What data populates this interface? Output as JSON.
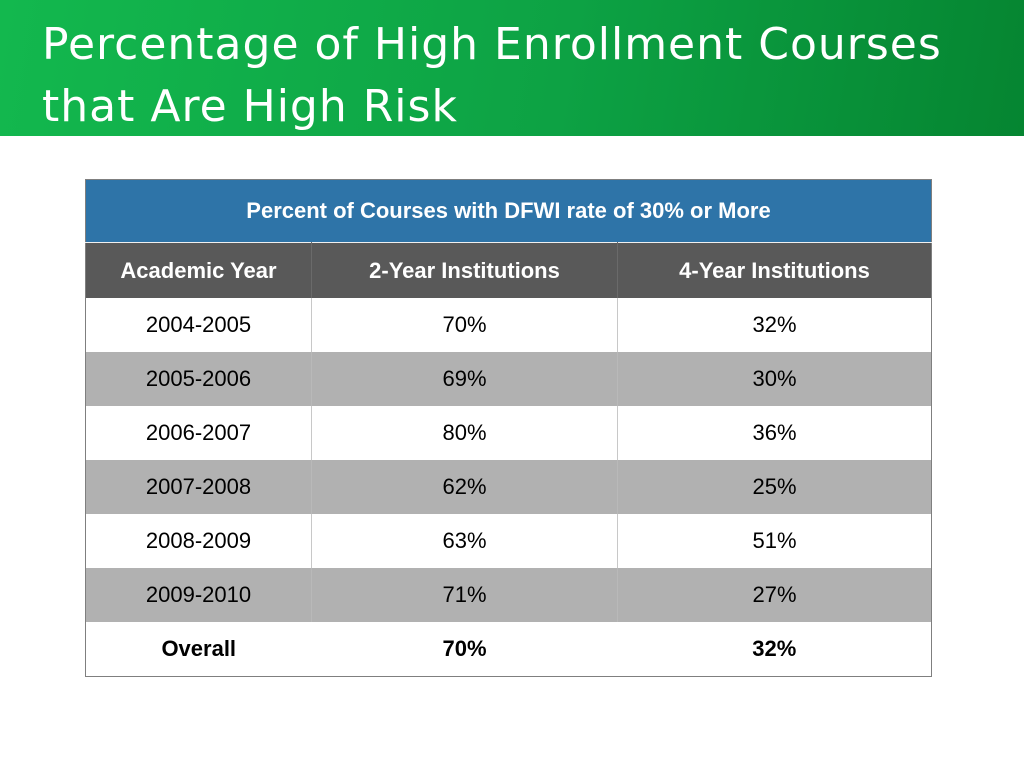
{
  "title": "Percentage of High Enrollment Courses that Are High Risk",
  "table": {
    "caption": "Percent of Courses with DFWI rate of 30% or More",
    "headers": [
      "Academic Year",
      "2-Year Institutions",
      "4-Year Institutions"
    ],
    "rows": [
      [
        "2004-2005",
        "70%",
        "32%"
      ],
      [
        "2005-2006",
        "69%",
        "30%"
      ],
      [
        "2006-2007",
        "80%",
        "36%"
      ],
      [
        "2007-2008",
        "62%",
        "25%"
      ],
      [
        "2008-2009",
        "63%",
        "51%"
      ],
      [
        "2009-2010",
        "71%",
        "27%"
      ]
    ],
    "total": [
      "Overall",
      "70%",
      "32%"
    ]
  },
  "colors": {
    "title_bar": "#0da244",
    "caption_bg": "#2e74a8",
    "header_bg": "#595959",
    "stripe_bg": "#b1b1b1"
  }
}
